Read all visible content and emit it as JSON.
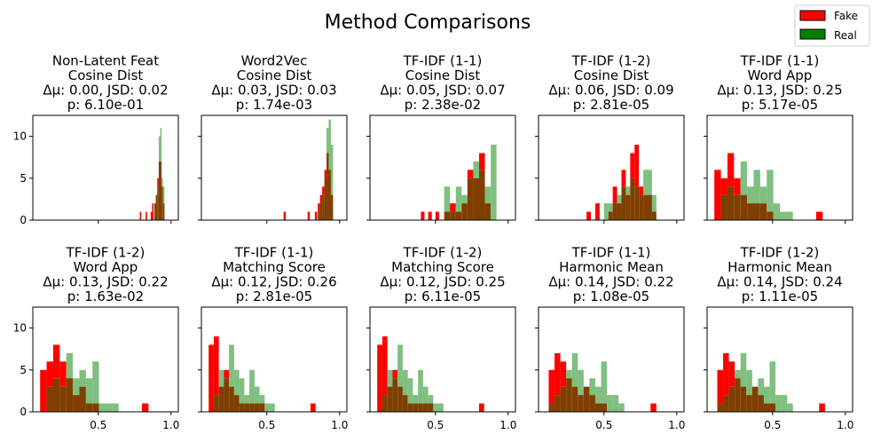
{
  "figure": {
    "title": "Method Comparisons"
  },
  "legend": {
    "placement": "top-right",
    "entries": [
      {
        "label": "Fake",
        "color": "#ff0000"
      },
      {
        "label": "Real",
        "color": "#008000"
      }
    ]
  },
  "colors": {
    "fake": "#ff0000",
    "real": "#7fbf7f",
    "overlap": "#7f3f00"
  },
  "chart_data": [
    {
      "type": "bar",
      "title": [
        "Non-Latent Feat",
        "Cosine Dist",
        "Δμ: 0.00, JSD: 0.02",
        "p: 6.10e-01"
      ],
      "xlim": [
        0.05,
        1.05
      ],
      "ylim": [
        0,
        12.5
      ],
      "xticks": [],
      "yticks": [
        0,
        5,
        10
      ],
      "bins": [
        {
          "x0": 0.785,
          "x1": 0.795,
          "fake": 1,
          "real": 0
        },
        {
          "x0": 0.825,
          "x1": 0.835,
          "fake": 1,
          "real": 0
        },
        {
          "x0": 0.86,
          "x1": 0.87,
          "fake": 1,
          "real": 0
        },
        {
          "x0": 0.87,
          "x1": 0.88,
          "fake": 2,
          "real": 0
        },
        {
          "x0": 0.885,
          "x1": 0.895,
          "fake": 2,
          "real": 2
        },
        {
          "x0": 0.895,
          "x1": 0.905,
          "fake": 3,
          "real": 3
        },
        {
          "x0": 0.905,
          "x1": 0.915,
          "fake": 5,
          "real": 4
        },
        {
          "x0": 0.915,
          "x1": 0.925,
          "fake": 7,
          "real": 10
        },
        {
          "x0": 0.925,
          "x1": 0.935,
          "fake": 7,
          "real": 11
        },
        {
          "x0": 0.935,
          "x1": 0.945,
          "fake": 4,
          "real": 5
        },
        {
          "x0": 0.945,
          "x1": 0.955,
          "fake": 2,
          "real": 4
        }
      ]
    },
    {
      "type": "bar",
      "title": [
        "Word2Vec",
        "Cosine Dist",
        "Δμ: 0.03, JSD: 0.03",
        "p: 1.74e-03"
      ],
      "xlim": [
        0.05,
        1.05
      ],
      "ylim": [
        0,
        12.5
      ],
      "xticks": [],
      "yticks": [
        0,
        5,
        10
      ],
      "bins": [
        {
          "x0": 0.615,
          "x1": 0.63,
          "fake": 1,
          "real": 0
        },
        {
          "x0": 0.78,
          "x1": 0.795,
          "fake": 1,
          "real": 0
        },
        {
          "x0": 0.83,
          "x1": 0.845,
          "fake": 1,
          "real": 0
        },
        {
          "x0": 0.85,
          "x1": 0.865,
          "fake": 2,
          "real": 1
        },
        {
          "x0": 0.865,
          "x1": 0.88,
          "fake": 3,
          "real": 2
        },
        {
          "x0": 0.88,
          "x1": 0.895,
          "fake": 4,
          "real": 3
        },
        {
          "x0": 0.895,
          "x1": 0.91,
          "fake": 6,
          "real": 5
        },
        {
          "x0": 0.91,
          "x1": 0.925,
          "fake": 8,
          "real": 11
        },
        {
          "x0": 0.925,
          "x1": 0.94,
          "fake": 6,
          "real": 12
        },
        {
          "x0": 0.94,
          "x1": 0.955,
          "fake": 3,
          "real": 9
        }
      ]
    },
    {
      "type": "bar",
      "title": [
        "TF-IDF (1-1)",
        "Cosine Dist",
        "Δμ: 0.05, JSD: 0.07",
        "p: 2.38e-02"
      ],
      "xlim": [
        0.05,
        1.05
      ],
      "ylim": [
        0,
        12.5
      ],
      "xticks": [],
      "yticks": [
        0,
        5,
        10
      ],
      "bins": [
        {
          "x0": 0.4,
          "x1": 0.425,
          "fake": 1,
          "real": 0
        },
        {
          "x0": 0.45,
          "x1": 0.475,
          "fake": 1,
          "real": 0
        },
        {
          "x0": 0.5,
          "x1": 0.525,
          "fake": 1,
          "real": 0
        },
        {
          "x0": 0.56,
          "x1": 0.6,
          "fake": 1,
          "real": 4
        },
        {
          "x0": 0.6,
          "x1": 0.64,
          "fake": 2,
          "real": 1
        },
        {
          "x0": 0.64,
          "x1": 0.68,
          "fake": 1,
          "real": 4
        },
        {
          "x0": 0.68,
          "x1": 0.72,
          "fake": 2,
          "real": 3
        },
        {
          "x0": 0.72,
          "x1": 0.76,
          "fake": 6,
          "real": 5
        },
        {
          "x0": 0.76,
          "x1": 0.8,
          "fake": 5,
          "real": 7
        },
        {
          "x0": 0.8,
          "x1": 0.84,
          "fake": 8,
          "real": 6
        },
        {
          "x0": 0.84,
          "x1": 0.88,
          "fake": 2,
          "real": 4
        },
        {
          "x0": 0.88,
          "x1": 0.92,
          "fake": 0,
          "real": 9
        }
      ]
    },
    {
      "type": "bar",
      "title": [
        "TF-IDF (1-2)",
        "Cosine Dist",
        "Δμ: 0.06, JSD: 0.09",
        "p: 2.81e-05"
      ],
      "xlim": [
        0.05,
        1.05
      ],
      "ylim": [
        0,
        12.5
      ],
      "xticks": [],
      "yticks": [
        0,
        5,
        10
      ],
      "bins": [
        {
          "x0": 0.38,
          "x1": 0.41,
          "fake": 1,
          "real": 0
        },
        {
          "x0": 0.44,
          "x1": 0.47,
          "fake": 2,
          "real": 0
        },
        {
          "x0": 0.5,
          "x1": 0.53,
          "fake": 0,
          "real": 2
        },
        {
          "x0": 0.53,
          "x1": 0.56,
          "fake": 1,
          "real": 2
        },
        {
          "x0": 0.56,
          "x1": 0.59,
          "fake": 4,
          "real": 2
        },
        {
          "x0": 0.59,
          "x1": 0.62,
          "fake": 2,
          "real": 3
        },
        {
          "x0": 0.62,
          "x1": 0.65,
          "fake": 6,
          "real": 4
        },
        {
          "x0": 0.65,
          "x1": 0.68,
          "fake": 3,
          "real": 4
        },
        {
          "x0": 0.68,
          "x1": 0.71,
          "fake": 8,
          "real": 5
        },
        {
          "x0": 0.71,
          "x1": 0.74,
          "fake": 9,
          "real": 4
        },
        {
          "x0": 0.74,
          "x1": 0.77,
          "fake": 4,
          "real": 3
        },
        {
          "x0": 0.77,
          "x1": 0.8,
          "fake": 3,
          "real": 6
        },
        {
          "x0": 0.8,
          "x1": 0.83,
          "fake": 3,
          "real": 6
        },
        {
          "x0": 0.83,
          "x1": 0.86,
          "fake": 1,
          "real": 3
        }
      ]
    },
    {
      "type": "bar",
      "title": [
        "TF-IDF (1-1)",
        "Word App",
        "Δμ: 0.13, JSD: 0.25",
        "p: 5.17e-05"
      ],
      "xlim": [
        0.05,
        1.05
      ],
      "ylim": [
        0,
        12.5
      ],
      "xticks": [],
      "yticks": [
        0,
        5,
        10
      ],
      "bins": [
        {
          "x0": 0.1,
          "x1": 0.145,
          "fake": 6,
          "real": 0
        },
        {
          "x0": 0.145,
          "x1": 0.19,
          "fake": 5,
          "real": 3
        },
        {
          "x0": 0.19,
          "x1": 0.235,
          "fake": 8,
          "real": 4
        },
        {
          "x0": 0.235,
          "x1": 0.28,
          "fake": 5,
          "real": 3
        },
        {
          "x0": 0.28,
          "x1": 0.325,
          "fake": 3,
          "real": 7
        },
        {
          "x0": 0.325,
          "x1": 0.37,
          "fake": 2,
          "real": 4
        },
        {
          "x0": 0.37,
          "x1": 0.415,
          "fake": 2,
          "real": 6
        },
        {
          "x0": 0.415,
          "x1": 0.46,
          "fake": 2,
          "real": 4
        },
        {
          "x0": 0.46,
          "x1": 0.505,
          "fake": 1,
          "real": 6
        },
        {
          "x0": 0.505,
          "x1": 0.55,
          "fake": 0,
          "real": 2
        },
        {
          "x0": 0.55,
          "x1": 0.595,
          "fake": 0,
          "real": 1
        },
        {
          "x0": 0.595,
          "x1": 0.64,
          "fake": 0,
          "real": 1
        },
        {
          "x0": 0.8,
          "x1": 0.845,
          "fake": 1,
          "real": 0
        }
      ]
    },
    {
      "type": "bar",
      "title": [
        "TF-IDF (1-2)",
        "Word App",
        "Δμ: 0.13, JSD: 0.22",
        "p: 1.63e-02"
      ],
      "xlim": [
        0.05,
        1.05
      ],
      "ylim": [
        0,
        12.5
      ],
      "xticks": [
        "0.5",
        "1.0"
      ],
      "yticks": [
        0,
        5,
        10
      ],
      "bins": [
        {
          "x0": 0.1,
          "x1": 0.145,
          "fake": 5,
          "real": 0
        },
        {
          "x0": 0.145,
          "x1": 0.19,
          "fake": 6,
          "real": 3
        },
        {
          "x0": 0.19,
          "x1": 0.235,
          "fake": 8,
          "real": 4
        },
        {
          "x0": 0.235,
          "x1": 0.28,
          "fake": 6,
          "real": 3
        },
        {
          "x0": 0.28,
          "x1": 0.325,
          "fake": 4,
          "real": 7
        },
        {
          "x0": 0.325,
          "x1": 0.37,
          "fake": 2,
          "real": 4
        },
        {
          "x0": 0.37,
          "x1": 0.415,
          "fake": 3,
          "real": 5
        },
        {
          "x0": 0.415,
          "x1": 0.46,
          "fake": 1,
          "real": 4
        },
        {
          "x0": 0.46,
          "x1": 0.505,
          "fake": 1,
          "real": 6
        },
        {
          "x0": 0.505,
          "x1": 0.55,
          "fake": 0,
          "real": 1
        },
        {
          "x0": 0.55,
          "x1": 0.595,
          "fake": 0,
          "real": 1
        },
        {
          "x0": 0.595,
          "x1": 0.64,
          "fake": 0,
          "real": 1
        },
        {
          "x0": 0.8,
          "x1": 0.845,
          "fake": 1,
          "real": 0
        }
      ]
    },
    {
      "type": "bar",
      "title": [
        "TF-IDF (1-1)",
        "Matching Score",
        "Δμ: 0.12, JSD: 0.26",
        "p: 2.81e-05"
      ],
      "xlim": [
        0.05,
        1.05
      ],
      "ylim": [
        0,
        12.5
      ],
      "xticks": [
        "0.5",
        "1.0"
      ],
      "yticks": [
        0,
        5,
        10
      ],
      "bins": [
        {
          "x0": 0.1,
          "x1": 0.135,
          "fake": 8,
          "real": 0
        },
        {
          "x0": 0.135,
          "x1": 0.17,
          "fake": 9,
          "real": 2
        },
        {
          "x0": 0.17,
          "x1": 0.205,
          "fake": 3,
          "real": 5
        },
        {
          "x0": 0.205,
          "x1": 0.24,
          "fake": 5,
          "real": 4
        },
        {
          "x0": 0.24,
          "x1": 0.275,
          "fake": 3,
          "real": 8
        },
        {
          "x0": 0.275,
          "x1": 0.31,
          "fake": 2,
          "real": 5
        },
        {
          "x0": 0.31,
          "x1": 0.345,
          "fake": 1,
          "real": 4
        },
        {
          "x0": 0.345,
          "x1": 0.38,
          "fake": 1,
          "real": 2
        },
        {
          "x0": 0.38,
          "x1": 0.415,
          "fake": 1,
          "real": 5
        },
        {
          "x0": 0.415,
          "x1": 0.45,
          "fake": 1,
          "real": 3
        },
        {
          "x0": 0.45,
          "x1": 0.485,
          "fake": 1,
          "real": 2
        },
        {
          "x0": 0.485,
          "x1": 0.52,
          "fake": 0,
          "real": 1
        },
        {
          "x0": 0.52,
          "x1": 0.555,
          "fake": 0,
          "real": 1
        },
        {
          "x0": 0.8,
          "x1": 0.835,
          "fake": 1,
          "real": 0
        }
      ]
    },
    {
      "type": "bar",
      "title": [
        "TF-IDF (1-2)",
        "Matching Score",
        "Δμ: 0.12, JSD: 0.25",
        "p: 6.11e-05"
      ],
      "xlim": [
        0.05,
        1.05
      ],
      "ylim": [
        0,
        12.5
      ],
      "xticks": [
        "0.5",
        "1.0"
      ],
      "yticks": [
        0,
        5,
        10
      ],
      "bins": [
        {
          "x0": 0.1,
          "x1": 0.135,
          "fake": 8,
          "real": 0
        },
        {
          "x0": 0.135,
          "x1": 0.17,
          "fake": 9,
          "real": 2
        },
        {
          "x0": 0.17,
          "x1": 0.205,
          "fake": 3,
          "real": 5
        },
        {
          "x0": 0.205,
          "x1": 0.24,
          "fake": 5,
          "real": 4
        },
        {
          "x0": 0.24,
          "x1": 0.275,
          "fake": 3,
          "real": 8
        },
        {
          "x0": 0.275,
          "x1": 0.31,
          "fake": 2,
          "real": 5
        },
        {
          "x0": 0.31,
          "x1": 0.345,
          "fake": 1,
          "real": 4
        },
        {
          "x0": 0.345,
          "x1": 0.38,
          "fake": 1,
          "real": 2
        },
        {
          "x0": 0.38,
          "x1": 0.415,
          "fake": 1,
          "real": 5
        },
        {
          "x0": 0.415,
          "x1": 0.45,
          "fake": 1,
          "real": 3
        },
        {
          "x0": 0.45,
          "x1": 0.485,
          "fake": 1,
          "real": 2
        },
        {
          "x0": 0.485,
          "x1": 0.52,
          "fake": 0,
          "real": 1
        },
        {
          "x0": 0.52,
          "x1": 0.555,
          "fake": 0,
          "real": 1
        },
        {
          "x0": 0.8,
          "x1": 0.835,
          "fake": 1,
          "real": 0
        }
      ]
    },
    {
      "type": "bar",
      "title": [
        "TF-IDF (1-1)",
        "Harmonic Mean",
        "Δμ: 0.14, JSD: 0.22",
        "p: 1.08e-05"
      ],
      "xlim": [
        0.05,
        1.05
      ],
      "ylim": [
        0,
        12.5
      ],
      "xticks": [
        "0.5",
        "1.0"
      ],
      "yticks": [
        0,
        5,
        10
      ],
      "bins": [
        {
          "x0": 0.12,
          "x1": 0.16,
          "fake": 5,
          "real": 1
        },
        {
          "x0": 0.16,
          "x1": 0.2,
          "fake": 7,
          "real": 2
        },
        {
          "x0": 0.2,
          "x1": 0.24,
          "fake": 6,
          "real": 3
        },
        {
          "x0": 0.24,
          "x1": 0.28,
          "fake": 4,
          "real": 5
        },
        {
          "x0": 0.28,
          "x1": 0.32,
          "fake": 3,
          "real": 7
        },
        {
          "x0": 0.32,
          "x1": 0.36,
          "fake": 2,
          "real": 5
        },
        {
          "x0": 0.36,
          "x1": 0.4,
          "fake": 3,
          "real": 3
        },
        {
          "x0": 0.4,
          "x1": 0.44,
          "fake": 2,
          "real": 4
        },
        {
          "x0": 0.44,
          "x1": 0.48,
          "fake": 1,
          "real": 3
        },
        {
          "x0": 0.48,
          "x1": 0.52,
          "fake": 1,
          "real": 6
        },
        {
          "x0": 0.52,
          "x1": 0.56,
          "fake": 0,
          "real": 2
        },
        {
          "x0": 0.56,
          "x1": 0.6,
          "fake": 0,
          "real": 2
        },
        {
          "x0": 0.6,
          "x1": 0.64,
          "fake": 0,
          "real": 1
        },
        {
          "x0": 0.82,
          "x1": 0.86,
          "fake": 1,
          "real": 0
        }
      ]
    },
    {
      "type": "bar",
      "title": [
        "TF-IDF (1-2)",
        "Harmonic Mean",
        "Δμ: 0.14, JSD: 0.24",
        "p: 1.11e-05"
      ],
      "xlim": [
        0.05,
        1.05
      ],
      "ylim": [
        0,
        12.5
      ],
      "xticks": [
        "0.5",
        "1.0"
      ],
      "yticks": [
        0,
        5,
        10
      ],
      "bins": [
        {
          "x0": 0.12,
          "x1": 0.16,
          "fake": 5,
          "real": 1
        },
        {
          "x0": 0.16,
          "x1": 0.2,
          "fake": 7,
          "real": 2
        },
        {
          "x0": 0.2,
          "x1": 0.24,
          "fake": 6,
          "real": 3
        },
        {
          "x0": 0.24,
          "x1": 0.28,
          "fake": 4,
          "real": 5
        },
        {
          "x0": 0.28,
          "x1": 0.32,
          "fake": 3,
          "real": 7
        },
        {
          "x0": 0.32,
          "x1": 0.36,
          "fake": 2,
          "real": 5
        },
        {
          "x0": 0.36,
          "x1": 0.4,
          "fake": 3,
          "real": 3
        },
        {
          "x0": 0.4,
          "x1": 0.44,
          "fake": 2,
          "real": 4
        },
        {
          "x0": 0.44,
          "x1": 0.48,
          "fake": 1,
          "real": 3
        },
        {
          "x0": 0.48,
          "x1": 0.52,
          "fake": 1,
          "real": 6
        },
        {
          "x0": 0.52,
          "x1": 0.56,
          "fake": 0,
          "real": 2
        },
        {
          "x0": 0.56,
          "x1": 0.6,
          "fake": 0,
          "real": 2
        },
        {
          "x0": 0.6,
          "x1": 0.64,
          "fake": 0,
          "real": 1
        },
        {
          "x0": 0.82,
          "x1": 0.86,
          "fake": 1,
          "real": 0
        }
      ]
    }
  ]
}
